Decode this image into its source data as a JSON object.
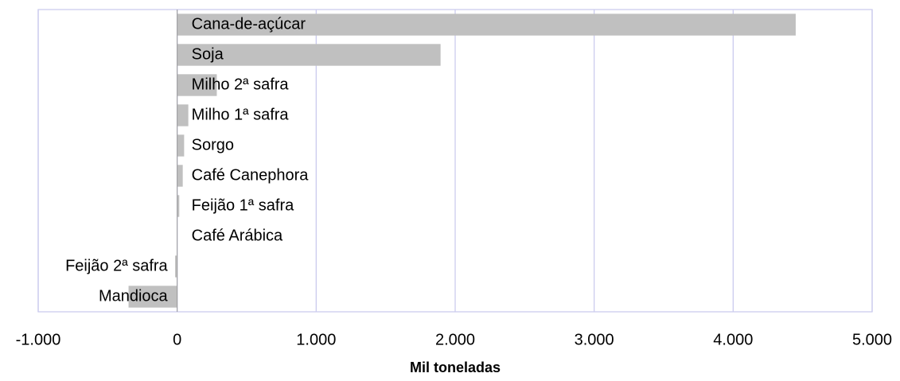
{
  "chart_data": {
    "type": "bar",
    "orientation": "horizontal",
    "x_label": "Mil toneladas",
    "categories": [
      "Cana-de-açúcar",
      "Soja",
      "Milho 2ª safra",
      "Milho 1ª safra",
      "Sorgo",
      "Café Canephora",
      "Feijão 1ª safra",
      "Café Arábica",
      "Feijão 2ª safra",
      "Mandioca"
    ],
    "values": [
      4450,
      1895,
      285,
      80,
      50,
      40,
      15,
      0,
      -15,
      -350
    ],
    "color": "#c0c0c0",
    "xlim": [
      -1000,
      5000
    ],
    "xticks": [
      {
        "value": -1000,
        "label": "-1.000"
      },
      0,
      {
        "value": 1000,
        "label": "1.000"
      },
      {
        "value": 2000,
        "label": "2.000"
      },
      {
        "value": 3000,
        "label": "3.000"
      },
      {
        "value": 4000,
        "label": "4.000"
      },
      {
        "value": 5000,
        "label": "5.000"
      }
    ],
    "grid": true
  }
}
